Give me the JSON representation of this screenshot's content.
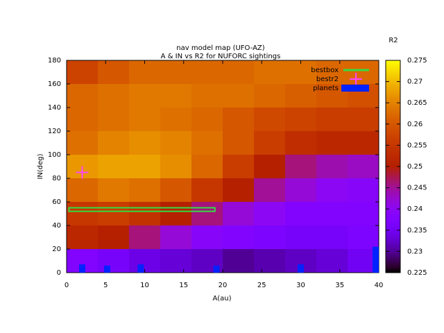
{
  "chart_data": {
    "type": "heatmap",
    "title": [
      "nav model map (UFO-AZ)",
      "A & IN vs R2 for NUFORC sightings"
    ],
    "x_label": "A(au)",
    "y_label": "IN(deg)",
    "colorbar_label": "R2",
    "xlim": [
      0,
      40
    ],
    "ylim": [
      0,
      180
    ],
    "cblim": [
      0.225,
      0.275
    ],
    "xticks": [
      0,
      5,
      10,
      15,
      20,
      25,
      30,
      35,
      40
    ],
    "yticks": [
      0,
      20,
      40,
      60,
      80,
      100,
      120,
      140,
      160,
      180
    ],
    "cbticks": [
      0.225,
      0.23,
      0.235,
      0.24,
      0.245,
      0.25,
      0.255,
      0.26,
      0.265,
      0.27,
      0.275
    ],
    "xbins": [
      0,
      4,
      8,
      12,
      16,
      20,
      24,
      28,
      32,
      36,
      40
    ],
    "ybins": [
      180,
      160,
      140,
      120,
      100,
      80,
      60,
      40,
      20,
      0
    ],
    "z": [
      [
        0.257,
        0.26,
        0.262,
        0.262,
        0.262,
        0.262,
        0.263,
        0.263,
        0.262,
        0.262
      ],
      [
        0.262,
        0.263,
        0.264,
        0.264,
        0.263,
        0.263,
        0.262,
        0.261,
        0.26,
        0.259
      ],
      [
        0.262,
        0.263,
        0.264,
        0.263,
        0.262,
        0.26,
        0.258,
        0.257,
        0.256,
        0.256
      ],
      [
        0.263,
        0.265,
        0.266,
        0.265,
        0.263,
        0.26,
        0.256,
        0.253,
        0.252,
        0.252
      ],
      [
        0.267,
        0.268,
        0.268,
        0.266,
        0.262,
        0.256,
        0.25,
        0.246,
        0.244,
        0.243
      ],
      [
        0.262,
        0.264,
        0.263,
        0.26,
        0.255,
        0.25,
        0.245,
        0.242,
        0.24,
        0.239
      ],
      [
        0.255,
        0.256,
        0.254,
        0.25,
        0.246,
        0.242,
        0.24,
        0.238,
        0.238,
        0.238
      ],
      [
        0.252,
        0.25,
        0.246,
        0.242,
        0.239,
        0.238,
        0.237,
        0.236,
        0.236,
        0.237
      ],
      [
        0.238,
        0.236,
        0.234,
        0.233,
        0.232,
        0.23,
        0.231,
        0.232,
        0.233,
        0.235
      ]
    ],
    "series": [
      {
        "name": "bestbox",
        "color": "#33dd44",
        "x": [
          0.3,
          19
        ],
        "y": [
          52,
          55
        ]
      },
      {
        "name": "bestr2",
        "color": "#ff44ff",
        "x": [
          2
        ],
        "y": [
          85
        ]
      },
      {
        "name": "planets",
        "color": "#0022ff",
        "x": [
          2,
          5.2,
          9.5,
          19.2,
          30,
          39.6
        ],
        "values": [
          7,
          6,
          7,
          6,
          7,
          22
        ]
      }
    ]
  }
}
